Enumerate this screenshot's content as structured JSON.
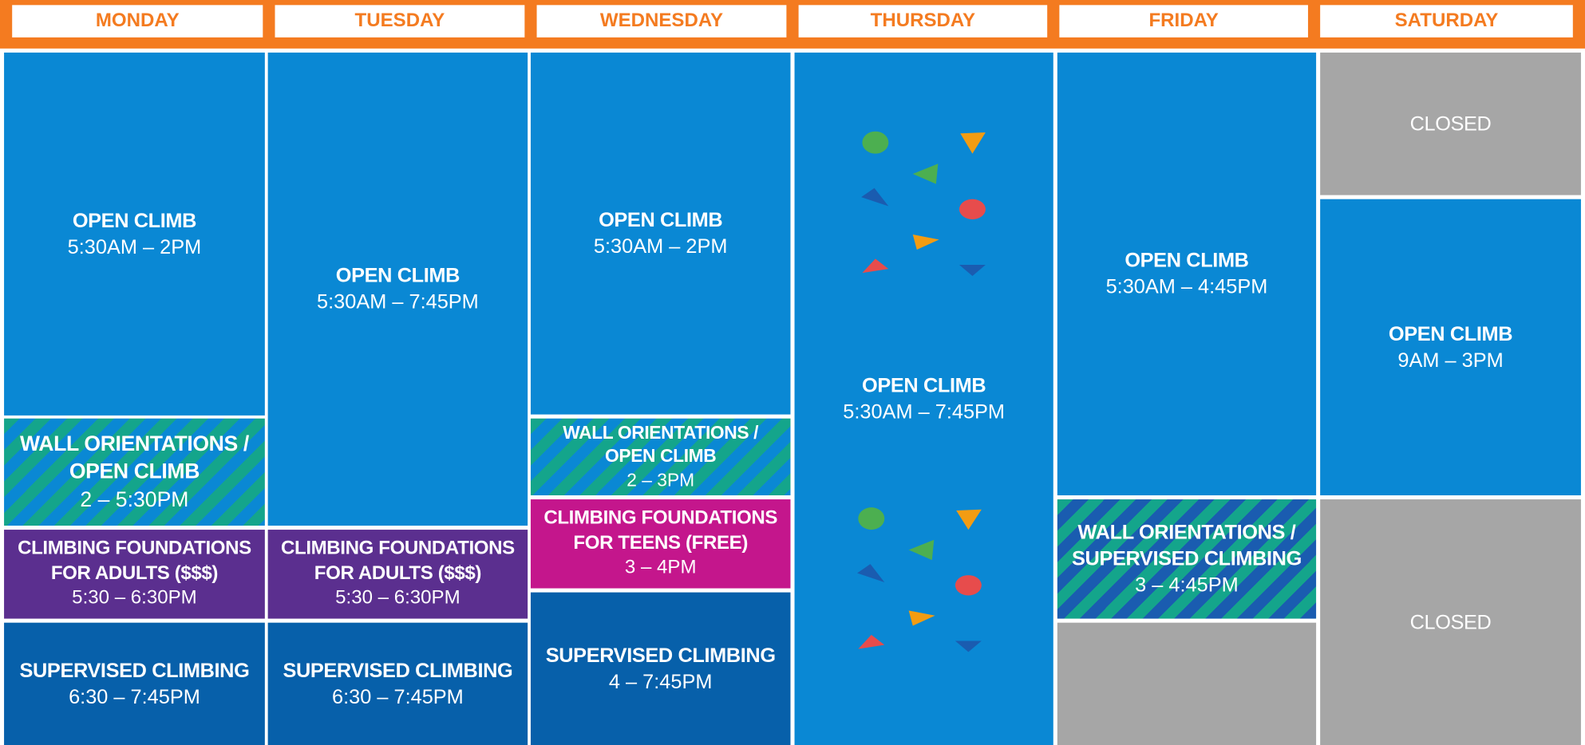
{
  "days": [
    {
      "name": "MONDAY",
      "blocks": [
        {
          "title": [
            "OPEN CLIMB"
          ],
          "time": "5:30AM – 2PM"
        },
        {
          "title": [
            "WALL ORIENTATIONS /",
            "OPEN CLIMB"
          ],
          "time": "2 – 5:30PM"
        },
        {
          "title": [
            "CLIMBING FOUNDATIONS",
            "FOR ADULTS ($$$)"
          ],
          "time": "5:30 – 6:30PM"
        },
        {
          "title": [
            "SUPERVISED CLIMBING"
          ],
          "time": "6:30 – 7:45PM"
        }
      ]
    },
    {
      "name": "TUESDAY",
      "blocks": [
        {
          "title": [
            "OPEN CLIMB"
          ],
          "time": "5:30AM – 7:45PM"
        },
        {
          "title": [
            "CLIMBING FOUNDATIONS",
            "FOR ADULTS ($$$)"
          ],
          "time": "5:30 – 6:30PM"
        },
        {
          "title": [
            "SUPERVISED CLIMBING"
          ],
          "time": "6:30 – 7:45PM"
        }
      ]
    },
    {
      "name": "WEDNESDAY",
      "blocks": [
        {
          "title": [
            "OPEN CLIMB"
          ],
          "time": "5:30AM – 2PM"
        },
        {
          "title": [
            "WALL ORIENTATIONS /",
            "OPEN CLIMB"
          ],
          "time": "2 – 3PM"
        },
        {
          "title": [
            "CLIMBING FOUNDATIONS",
            "FOR TEENS (FREE)"
          ],
          "time": "3 – 4PM"
        },
        {
          "title": [
            "SUPERVISED CLIMBING"
          ],
          "time": "4 – 7:45PM"
        }
      ]
    },
    {
      "name": "THURSDAY",
      "blocks": [
        {
          "title": [
            "OPEN CLIMB"
          ],
          "time": "5:30AM – 7:45PM"
        }
      ]
    },
    {
      "name": "FRIDAY",
      "blocks": [
        {
          "title": [
            "OPEN CLIMB"
          ],
          "time": "5:30AM – 4:45PM"
        },
        {
          "title": [
            "WALL ORIENTATIONS /",
            "SUPERVISED CLIMBING"
          ],
          "time": "3 – 4:45PM"
        }
      ]
    },
    {
      "name": "SATURDAY",
      "blocks": [
        {
          "title": [
            "CLOSED"
          ]
        },
        {
          "title": [
            "OPEN CLIMB"
          ],
          "time": "9AM – 3PM"
        },
        {
          "title": [
            "CLOSED"
          ]
        }
      ]
    }
  ]
}
